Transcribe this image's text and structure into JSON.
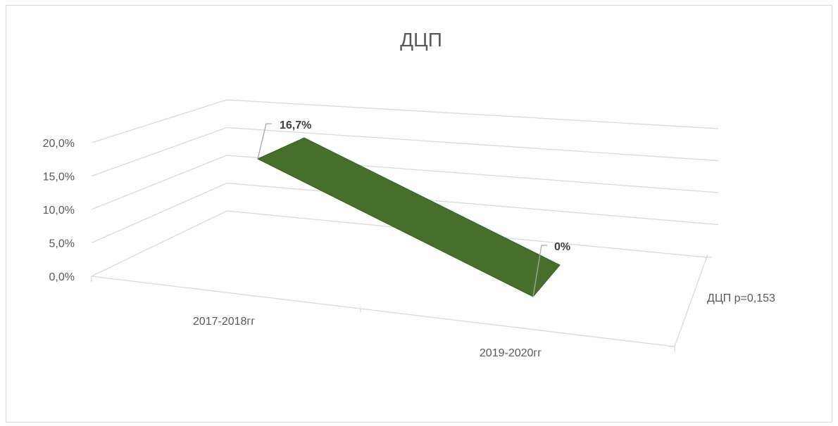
{
  "chart_data": {
    "type": "line",
    "title": "ДЦП",
    "categories": [
      "2017-2018гг",
      "2019-2020гг"
    ],
    "series": [
      {
        "name": "ДЦП p=0,153",
        "values": [
          0.167,
          0.0
        ],
        "labels": [
          "16,7%",
          "0%"
        ]
      }
    ],
    "ylim": [
      0,
      0.2
    ],
    "y_ticks": [
      "0,0%",
      "5,0%",
      "10,0%",
      "15,0%",
      "20,0%"
    ],
    "grid": true,
    "style": "3d-ribbon",
    "series_color": "#466f2b"
  }
}
